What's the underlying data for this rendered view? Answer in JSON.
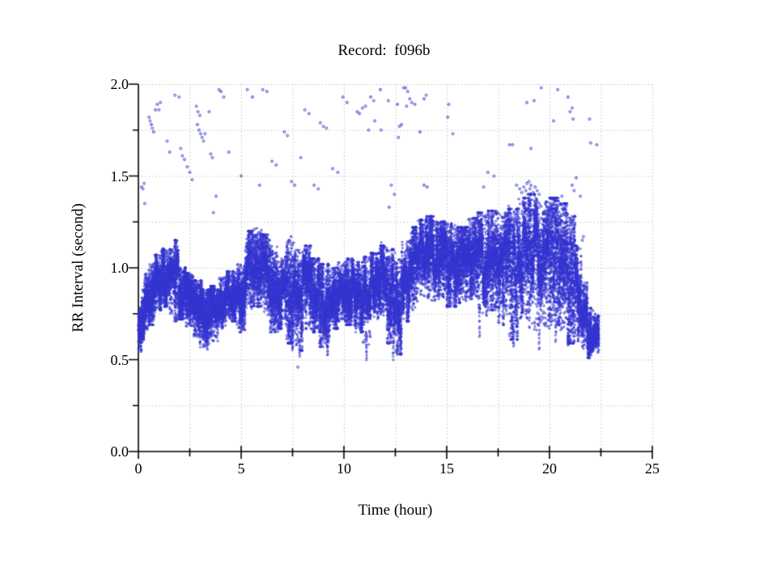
{
  "chart_data": {
    "type": "scatter",
    "title": "Record:  f096b",
    "xlabel": "Time (hour)",
    "ylabel": "RR Interval (second)",
    "xlim": [
      0,
      25
    ],
    "ylim": [
      0.0,
      2.0
    ],
    "x_major_ticks": [
      0,
      5,
      10,
      15,
      20,
      25
    ],
    "x_tick_labels": [
      "0",
      "5",
      "10",
      "15",
      "20",
      "25"
    ],
    "x_minor_ticks": [
      2.5,
      7.5,
      12.5,
      17.5,
      22.5
    ],
    "y_major_ticks": [
      0.0,
      0.5,
      1.0,
      1.5,
      2.0
    ],
    "y_tick_labels": [
      "0.0",
      "0.5",
      "1.0",
      "1.5",
      "2.0"
    ],
    "y_minor_ticks": [
      0.25,
      0.75,
      1.25,
      1.75
    ],
    "grid": "dotted lines at every major and minor tick; solid left and bottom axes only",
    "legend": "none",
    "marker": {
      "shape": "open-circle",
      "color": "#3333cf",
      "radius_px": 1.1
    },
    "colors": {
      "points": "#3333cf",
      "grid": "#b4b4b4",
      "axis": "#000000",
      "background": "#ffffff"
    },
    "data_end_hour": 22.4,
    "seed": 42,
    "series_description": "Dense RR-interval band (one point per heartbeat) described by a time-varying envelope [t_start, t_end, rr_low, rr_high], plus sparse long-RR outliers and occasional short-RR streaks.",
    "band_envelope": [
      [
        0.0,
        0.15,
        0.55,
        0.78
      ],
      [
        0.15,
        0.3,
        0.6,
        0.9
      ],
      [
        0.3,
        0.5,
        0.65,
        0.97
      ],
      [
        0.5,
        0.8,
        0.7,
        1.02
      ],
      [
        0.8,
        1.1,
        0.78,
        1.07
      ],
      [
        1.1,
        1.5,
        0.8,
        1.1
      ],
      [
        1.5,
        1.75,
        0.75,
        1.1
      ],
      [
        1.75,
        1.95,
        0.72,
        1.15
      ],
      [
        1.95,
        2.3,
        0.73,
        1.0
      ],
      [
        2.3,
        2.7,
        0.68,
        0.97
      ],
      [
        2.7,
        3.1,
        0.62,
        0.93
      ],
      [
        3.1,
        3.5,
        0.58,
        0.88
      ],
      [
        3.5,
        3.9,
        0.6,
        0.9
      ],
      [
        3.9,
        4.3,
        0.68,
        0.95
      ],
      [
        4.3,
        4.8,
        0.72,
        0.98
      ],
      [
        4.8,
        5.2,
        0.66,
        1.02
      ],
      [
        5.2,
        5.6,
        0.78,
        1.2
      ],
      [
        5.6,
        6.0,
        0.8,
        1.22
      ],
      [
        6.0,
        6.4,
        0.75,
        1.18
      ],
      [
        6.4,
        6.8,
        0.66,
        1.12
      ],
      [
        6.8,
        7.2,
        0.68,
        1.06
      ],
      [
        7.2,
        7.6,
        0.6,
        1.17
      ],
      [
        7.6,
        8.0,
        0.56,
        1.1
      ],
      [
        8.0,
        8.4,
        0.68,
        1.12
      ],
      [
        8.4,
        8.8,
        0.66,
        1.05
      ],
      [
        8.8,
        9.3,
        0.58,
        1.02
      ],
      [
        9.3,
        9.7,
        0.68,
        1.0
      ],
      [
        9.7,
        10.1,
        0.72,
        1.03
      ],
      [
        10.1,
        10.5,
        0.7,
        1.05
      ],
      [
        10.5,
        10.9,
        0.66,
        1.03
      ],
      [
        10.9,
        11.3,
        0.58,
        1.06
      ],
      [
        11.3,
        11.7,
        0.72,
        1.08
      ],
      [
        11.7,
        12.1,
        0.74,
        1.12
      ],
      [
        12.1,
        12.5,
        0.6,
        1.1
      ],
      [
        12.5,
        12.8,
        0.54,
        1.05
      ],
      [
        12.8,
        13.2,
        0.72,
        1.15
      ],
      [
        13.2,
        13.6,
        0.78,
        1.22
      ],
      [
        13.6,
        14.0,
        0.84,
        1.26
      ],
      [
        14.0,
        14.5,
        0.82,
        1.28
      ],
      [
        14.5,
        15.0,
        0.84,
        1.25
      ],
      [
        15.0,
        15.5,
        0.8,
        1.24
      ],
      [
        15.5,
        16.0,
        0.82,
        1.22
      ],
      [
        16.0,
        16.5,
        0.84,
        1.27
      ],
      [
        16.5,
        17.0,
        0.75,
        1.3
      ],
      [
        17.0,
        17.5,
        0.78,
        1.31
      ],
      [
        17.5,
        18.0,
        0.7,
        1.3
      ],
      [
        18.0,
        18.5,
        0.62,
        1.32
      ],
      [
        18.5,
        19.0,
        0.72,
        1.38
      ],
      [
        19.0,
        19.5,
        0.66,
        1.4
      ],
      [
        19.5,
        20.0,
        0.68,
        1.36
      ],
      [
        20.0,
        20.45,
        0.7,
        1.38
      ],
      [
        20.45,
        20.9,
        0.66,
        1.35
      ],
      [
        20.9,
        21.25,
        0.6,
        1.28
      ],
      [
        21.25,
        21.55,
        0.62,
        1.12
      ],
      [
        21.55,
        21.85,
        0.55,
        0.92
      ],
      [
        21.85,
        22.15,
        0.52,
        0.78
      ],
      [
        22.15,
        22.4,
        0.55,
        0.75
      ]
    ],
    "deep_streaks": [
      [
        3.0,
        0.57
      ],
      [
        3.35,
        0.56
      ],
      [
        7.5,
        0.55
      ],
      [
        7.85,
        0.52
      ],
      [
        9.2,
        0.52
      ],
      [
        11.1,
        0.5
      ],
      [
        12.4,
        0.5
      ],
      [
        12.6,
        0.53
      ],
      [
        16.6,
        0.62
      ],
      [
        18.25,
        0.57
      ],
      [
        19.5,
        0.55
      ],
      [
        20.3,
        0.6
      ],
      [
        20.9,
        0.58
      ],
      [
        21.4,
        0.6
      ]
    ],
    "upper_outliers": [
      [
        0.15,
        1.44
      ],
      [
        0.22,
        1.43
      ],
      [
        0.28,
        1.46
      ],
      [
        0.31,
        1.35
      ],
      [
        0.52,
        1.82
      ],
      [
        0.57,
        1.8
      ],
      [
        0.63,
        1.78
      ],
      [
        0.68,
        1.76
      ],
      [
        0.74,
        1.74
      ],
      [
        0.83,
        1.86
      ],
      [
        0.92,
        1.89
      ],
      [
        1.0,
        1.86
      ],
      [
        1.07,
        1.9
      ],
      [
        1.4,
        1.69
      ],
      [
        1.52,
        1.63
      ],
      [
        1.78,
        1.94
      ],
      [
        1.98,
        1.93
      ],
      [
        2.06,
        1.65
      ],
      [
        2.14,
        1.61
      ],
      [
        2.24,
        1.59
      ],
      [
        2.38,
        1.55
      ],
      [
        2.5,
        1.52
      ],
      [
        2.62,
        1.48
      ],
      [
        2.82,
        1.88
      ],
      [
        2.9,
        1.85
      ],
      [
        2.99,
        1.83
      ],
      [
        2.87,
        1.78
      ],
      [
        2.95,
        1.75
      ],
      [
        3.03,
        1.73
      ],
      [
        3.1,
        1.71
      ],
      [
        3.17,
        1.69
      ],
      [
        3.24,
        1.73
      ],
      [
        3.44,
        1.85
      ],
      [
        3.52,
        1.62
      ],
      [
        3.6,
        1.6
      ],
      [
        3.78,
        1.39
      ],
      [
        3.65,
        1.3
      ],
      [
        3.92,
        1.97
      ],
      [
        4.02,
        1.96
      ],
      [
        4.15,
        1.93
      ],
      [
        4.4,
        1.63
      ],
      [
        5.0,
        1.5
      ],
      [
        5.3,
        1.97
      ],
      [
        5.55,
        1.93
      ],
      [
        5.9,
        1.45
      ],
      [
        6.05,
        1.97
      ],
      [
        6.25,
        1.96
      ],
      [
        6.5,
        1.58
      ],
      [
        6.7,
        1.56
      ],
      [
        7.1,
        1.74
      ],
      [
        7.25,
        1.72
      ],
      [
        7.45,
        1.47
      ],
      [
        7.6,
        1.45
      ],
      [
        7.9,
        1.6
      ],
      [
        8.1,
        1.86
      ],
      [
        8.3,
        1.84
      ],
      [
        8.55,
        1.45
      ],
      [
        8.75,
        1.43
      ],
      [
        8.85,
        1.79
      ],
      [
        9.0,
        1.77
      ],
      [
        9.15,
        1.76
      ],
      [
        9.45,
        1.54
      ],
      [
        9.7,
        1.52
      ],
      [
        9.95,
        1.93
      ],
      [
        10.15,
        1.9
      ],
      [
        10.65,
        1.85
      ],
      [
        10.75,
        1.84
      ],
      [
        10.9,
        1.87
      ],
      [
        11.05,
        1.88
      ],
      [
        11.2,
        1.75
      ],
      [
        11.3,
        1.93
      ],
      [
        11.45,
        1.91
      ],
      [
        11.5,
        1.8
      ],
      [
        11.77,
        1.97
      ],
      [
        11.8,
        1.75
      ],
      [
        12.16,
        1.91
      ],
      [
        12.2,
        1.33
      ],
      [
        12.3,
        1.45
      ],
      [
        12.45,
        1.4
      ],
      [
        12.6,
        1.89
      ],
      [
        12.65,
        1.71
      ],
      [
        12.7,
        1.77
      ],
      [
        12.8,
        1.78
      ],
      [
        12.9,
        1.98
      ],
      [
        13.0,
        1.98
      ],
      [
        13.1,
        1.96
      ],
      [
        13.05,
        1.88
      ],
      [
        13.2,
        1.92
      ],
      [
        13.3,
        1.9
      ],
      [
        13.45,
        1.89
      ],
      [
        13.7,
        1.74
      ],
      [
        13.9,
        1.92
      ],
      [
        14.0,
        1.94
      ],
      [
        13.9,
        1.45
      ],
      [
        14.05,
        1.44
      ],
      [
        15.05,
        1.82
      ],
      [
        15.1,
        1.89
      ],
      [
        15.3,
        1.73
      ],
      [
        16.8,
        1.44
      ],
      [
        17.0,
        1.52
      ],
      [
        17.3,
        1.5
      ],
      [
        18.05,
        1.67
      ],
      [
        18.2,
        1.67
      ],
      [
        18.4,
        1.45
      ],
      [
        18.55,
        1.43
      ],
      [
        18.65,
        1.41
      ],
      [
        18.75,
        1.44
      ],
      [
        18.85,
        1.42
      ],
      [
        18.9,
        1.46
      ],
      [
        18.95,
        1.4
      ],
      [
        19.0,
        1.47
      ],
      [
        19.05,
        1.43
      ],
      [
        19.1,
        1.45
      ],
      [
        19.2,
        1.41
      ],
      [
        19.3,
        1.44
      ],
      [
        19.4,
        1.42
      ],
      [
        19.5,
        1.4
      ],
      [
        18.9,
        1.9
      ],
      [
        19.25,
        1.91
      ],
      [
        19.6,
        1.98
      ],
      [
        19.1,
        1.65
      ],
      [
        20.2,
        1.8
      ],
      [
        20.4,
        1.97
      ],
      [
        20.6,
        1.39
      ],
      [
        20.9,
        1.93
      ],
      [
        21.0,
        1.85
      ],
      [
        21.1,
        1.87
      ],
      [
        21.15,
        1.81
      ],
      [
        21.1,
        1.45
      ],
      [
        21.2,
        1.42
      ],
      [
        21.3,
        1.49
      ],
      [
        21.5,
        1.39
      ],
      [
        21.6,
        1.15
      ],
      [
        21.65,
        1.17
      ],
      [
        21.95,
        1.81
      ],
      [
        22.0,
        1.68
      ],
      [
        22.3,
        1.67
      ]
    ],
    "lower_outliers": [
      [
        7.76,
        0.46
      ]
    ]
  }
}
